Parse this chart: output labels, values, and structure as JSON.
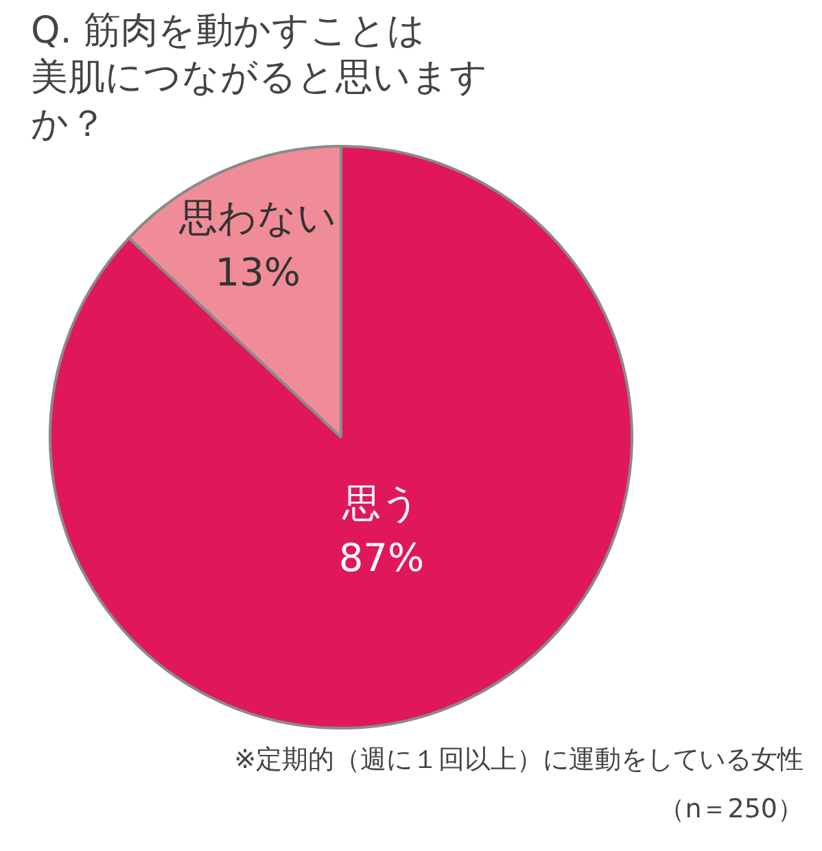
{
  "chart_data": {
    "type": "pie",
    "title": "Q. 筋肉を動かすことは美肌につながると思いますか？",
    "categories": [
      "思う",
      "思わない"
    ],
    "values": [
      87,
      13
    ],
    "colors": [
      "#e0185a",
      "#f08c98"
    ],
    "value_labels": [
      "87%",
      "13%"
    ],
    "annotations": [
      "※定期的（週に１回以上）に運動をしている女性",
      "（n＝250）"
    ]
  }
}
